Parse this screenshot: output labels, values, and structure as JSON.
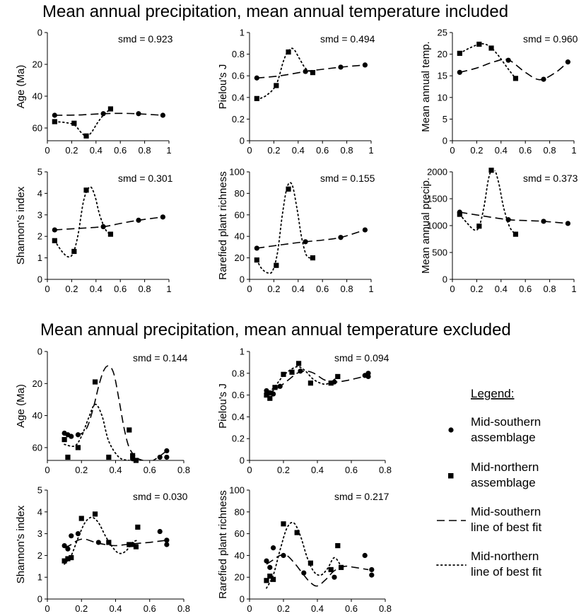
{
  "titles": {
    "top": "Mean annual precipitation, mean annual temperature included",
    "bottom": "Mean annual precipitation, mean annual temperature excluded"
  },
  "legend": {
    "title": "Legend:",
    "items": [
      {
        "symbol": "circle",
        "lines": [
          "Mid-southern",
          "assemblage"
        ]
      },
      {
        "symbol": "square",
        "lines": [
          "Mid-northern",
          "assemblage"
        ]
      },
      {
        "symbol": "dashed",
        "lines": [
          "Mid-southern",
          "line of best fit"
        ]
      },
      {
        "symbol": "dotted",
        "lines": [
          "Mid-northern",
          "line of best fit"
        ]
      }
    ]
  },
  "chart_data": [
    {
      "id": "a1",
      "type": "scatter",
      "ylabel": "Age (Ma)",
      "smd": "smd = 0.923",
      "xlim": [
        0,
        1
      ],
      "xticks": [
        "0",
        "0.2",
        "0.4",
        "0.6",
        "0.8",
        "1"
      ],
      "xtick_values": [
        0,
        0.2,
        0.4,
        0.6,
        0.8,
        1
      ],
      "ylim": [
        0,
        68
      ],
      "yticks": [
        0,
        20,
        40,
        60
      ],
      "yreverse": true,
      "south": {
        "x": [
          0.06,
          0.46,
          0.75,
          0.95
        ],
        "y": [
          52,
          51,
          51,
          52
        ]
      },
      "north": {
        "x": [
          0.06,
          0.22,
          0.32,
          0.52
        ],
        "y": [
          56,
          57,
          65,
          48
        ]
      },
      "south_fit": {
        "x": [
          0.06,
          0.25,
          0.46,
          0.6,
          0.75,
          0.95
        ],
        "y": [
          52,
          51.8,
          51,
          50.8,
          51.1,
          52
        ]
      },
      "north_fit": {
        "x": [
          0.06,
          0.14,
          0.22,
          0.28,
          0.32,
          0.36,
          0.41,
          0.46,
          0.52
        ],
        "y": [
          56,
          56.5,
          58,
          63,
          65,
          63,
          57,
          52,
          48
        ]
      }
    },
    {
      "id": "a2",
      "type": "scatter",
      "ylabel": "Pielou's J",
      "smd": "smd = 0.494",
      "xlim": [
        0,
        1
      ],
      "xticks": [
        "0",
        "0.2",
        "0.4",
        "0.6",
        "0.8",
        "1"
      ],
      "xtick_values": [
        0,
        0.2,
        0.4,
        0.6,
        0.8,
        1
      ],
      "ylim": [
        0,
        1
      ],
      "yticks": [
        0,
        0.2,
        0.4,
        0.6,
        0.8,
        1
      ],
      "ytick_labels": [
        "0",
        "0.2",
        "0.4",
        "0.6",
        "0.8",
        "1"
      ],
      "south": {
        "x": [
          0.06,
          0.46,
          0.75,
          0.95
        ],
        "y": [
          0.58,
          0.64,
          0.68,
          0.7
        ]
      },
      "north": {
        "x": [
          0.06,
          0.22,
          0.32,
          0.52
        ],
        "y": [
          0.39,
          0.51,
          0.82,
          0.63
        ]
      },
      "south_fit": {
        "x": [
          0.06,
          0.25,
          0.46,
          0.6,
          0.75,
          0.95
        ],
        "y": [
          0.58,
          0.6,
          0.64,
          0.66,
          0.68,
          0.7
        ]
      },
      "north_fit": {
        "x": [
          0.06,
          0.14,
          0.22,
          0.28,
          0.32,
          0.36,
          0.41,
          0.46,
          0.52
        ],
        "y": [
          0.38,
          0.42,
          0.52,
          0.74,
          0.83,
          0.85,
          0.76,
          0.67,
          0.63
        ]
      }
    },
    {
      "id": "a3",
      "type": "scatter",
      "ylabel": "Mean annual temp.",
      "smd": "smd = 0.960",
      "xlim": [
        0,
        1
      ],
      "xticks": [
        "0",
        "0.2",
        "0.4",
        "0.6",
        "0.8",
        "1"
      ],
      "xtick_values": [
        0,
        0.2,
        0.4,
        0.6,
        0.8,
        1
      ],
      "ylim": [
        0,
        25
      ],
      "yticks": [
        0,
        5,
        10,
        15,
        20,
        25
      ],
      "south": {
        "x": [
          0.06,
          0.46,
          0.75,
          0.95
        ],
        "y": [
          15.8,
          18.6,
          14.2,
          18.2
        ]
      },
      "north": {
        "x": [
          0.06,
          0.22,
          0.32,
          0.52
        ],
        "y": [
          20.2,
          22.3,
          21.4,
          14.4
        ]
      },
      "south_fit": {
        "x": [
          0.06,
          0.2,
          0.35,
          0.46,
          0.6,
          0.72,
          0.85,
          0.95
        ],
        "y": [
          15.8,
          16.8,
          18.3,
          18.7,
          15.8,
          14.1,
          15.8,
          18.2
        ]
      },
      "north_fit": {
        "x": [
          0.06,
          0.14,
          0.22,
          0.27,
          0.32,
          0.38,
          0.44,
          0.48,
          0.52
        ],
        "y": [
          20.2,
          21.4,
          22.3,
          22.3,
          21.5,
          19.6,
          17.3,
          15.8,
          14.4
        ]
      }
    },
    {
      "id": "a4",
      "type": "scatter",
      "ylabel": "Shannon's index",
      "smd": "smd = 0.301",
      "xlim": [
        0,
        1
      ],
      "xticks": [
        "0",
        "0.2",
        "0.4",
        "0.6",
        "0.8",
        "1"
      ],
      "xtick_values": [
        0,
        0.2,
        0.4,
        0.6,
        0.8,
        1
      ],
      "ylim": [
        0,
        5
      ],
      "yticks": [
        0,
        1,
        2,
        3,
        4,
        5
      ],
      "south": {
        "x": [
          0.06,
          0.46,
          0.75,
          0.95
        ],
        "y": [
          2.3,
          2.45,
          2.75,
          2.9
        ]
      },
      "north": {
        "x": [
          0.06,
          0.22,
          0.32,
          0.52
        ],
        "y": [
          1.8,
          1.3,
          4.15,
          2.1
        ]
      },
      "south_fit": {
        "x": [
          0.06,
          0.25,
          0.46,
          0.6,
          0.75,
          0.95
        ],
        "y": [
          2.3,
          2.37,
          2.45,
          2.6,
          2.75,
          2.9
        ]
      },
      "north_fit": {
        "x": [
          0.06,
          0.12,
          0.17,
          0.21,
          0.25,
          0.3,
          0.35,
          0.39,
          0.43,
          0.48,
          0.52
        ],
        "y": [
          1.8,
          1.3,
          1.05,
          1.2,
          2.0,
          3.7,
          4.3,
          3.9,
          3.0,
          2.3,
          2.1
        ]
      }
    },
    {
      "id": "a5",
      "type": "scatter",
      "ylabel": "Rarefied plant richness",
      "smd": "smd = 0.155",
      "xlim": [
        0,
        1
      ],
      "xticks": [
        "0",
        "0.2",
        "0.4",
        "0.6",
        "0.8",
        "1"
      ],
      "xtick_values": [
        0,
        0.2,
        0.4,
        0.6,
        0.8,
        1
      ],
      "ylim": [
        0,
        100
      ],
      "yticks": [
        0,
        20,
        40,
        60,
        80,
        100
      ],
      "south": {
        "x": [
          0.06,
          0.46,
          0.75,
          0.95
        ],
        "y": [
          29,
          35,
          39,
          46
        ]
      },
      "north": {
        "x": [
          0.06,
          0.22,
          0.32,
          0.52
        ],
        "y": [
          18,
          13,
          84,
          20
        ]
      },
      "south_fit": {
        "x": [
          0.06,
          0.25,
          0.46,
          0.6,
          0.75,
          0.95
        ],
        "y": [
          29,
          32,
          35,
          36.5,
          39,
          46
        ]
      },
      "north_fit": {
        "x": [
          0.06,
          0.1,
          0.15,
          0.19,
          0.23,
          0.27,
          0.31,
          0.35,
          0.39,
          0.43,
          0.47,
          0.52
        ],
        "y": [
          18,
          10,
          6,
          8,
          25,
          60,
          86,
          88,
          66,
          38,
          22,
          20
        ]
      }
    },
    {
      "id": "a6",
      "type": "scatter",
      "ylabel": "Mean annual precip.",
      "smd": "smd = 0.373",
      "xlim": [
        0,
        1
      ],
      "xticks": [
        "0",
        "0.2",
        "0.4",
        "0.6",
        "0.8",
        "1"
      ],
      "xtick_values": [
        0,
        0.2,
        0.4,
        0.6,
        0.8,
        1
      ],
      "ylim": [
        0,
        2000
      ],
      "yticks": [
        0,
        500,
        1000,
        1500,
        2000
      ],
      "south": {
        "x": [
          0.06,
          0.46,
          0.75,
          0.95
        ],
        "y": [
          1250,
          1110,
          1080,
          1040
        ]
      },
      "north": {
        "x": [
          0.06,
          0.22,
          0.32,
          0.52
        ],
        "y": [
          1210,
          990,
          2030,
          840
        ]
      },
      "south_fit": {
        "x": [
          0.06,
          0.25,
          0.46,
          0.6,
          0.75,
          0.95
        ],
        "y": [
          1250,
          1180,
          1110,
          1095,
          1080,
          1040
        ]
      },
      "north_fit": {
        "x": [
          0.06,
          0.12,
          0.18,
          0.22,
          0.26,
          0.3,
          0.34,
          0.38,
          0.42,
          0.47,
          0.52
        ],
        "y": [
          1210,
          1050,
          920,
          980,
          1350,
          1900,
          2060,
          1800,
          1350,
          980,
          840
        ]
      }
    },
    {
      "id": "b1",
      "type": "scatter",
      "ylabel": "Age (Ma)",
      "smd": "smd = 0.144",
      "xlim": [
        0,
        0.8
      ],
      "xticks": [
        "0",
        "0.2",
        "0.4",
        "0.6",
        "0.8"
      ],
      "xtick_values": [
        0,
        0.2,
        0.4,
        0.6,
        0.8
      ],
      "ylim": [
        0,
        68
      ],
      "yticks": [
        0,
        20,
        40,
        60
      ],
      "yreverse": true,
      "south": {
        "x": [
          0.1,
          0.12,
          0.14,
          0.18,
          0.5,
          0.66,
          0.7,
          0.7
        ],
        "y": [
          51,
          52,
          53,
          52,
          67,
          66,
          62,
          66
        ]
      },
      "north": {
        "x": [
          0.1,
          0.12,
          0.18,
          0.28,
          0.36,
          0.48,
          0.5,
          0.52
        ],
        "y": [
          55,
          66,
          60,
          19,
          66,
          49,
          65,
          68
        ]
      },
      "south_fit": {
        "x": [
          0.1,
          0.18,
          0.23,
          0.27,
          0.3,
          0.33,
          0.36,
          0.39,
          0.42,
          0.45,
          0.48,
          0.52,
          0.56,
          0.6,
          0.65,
          0.7
        ],
        "y": [
          52,
          52,
          48,
          35,
          22,
          12,
          9,
          14,
          30,
          48,
          60,
          66,
          68,
          69,
          66,
          62
        ]
      },
      "north_fit": {
        "x": [
          0.1,
          0.16,
          0.2,
          0.24,
          0.28,
          0.32,
          0.36,
          0.42,
          0.48,
          0.52
        ],
        "y": [
          58,
          59,
          53,
          42,
          33,
          40,
          56,
          66,
          68,
          68
        ]
      }
    },
    {
      "id": "b2",
      "type": "scatter",
      "ylabel": "Pielou's J",
      "smd": "smd = 0.094",
      "xlim": [
        0,
        0.8
      ],
      "xticks": [
        "0",
        "0.2",
        "0.4",
        "0.6",
        "0.8"
      ],
      "xtick_values": [
        0,
        0.2,
        0.4,
        0.6,
        0.8
      ],
      "ylim": [
        0,
        1
      ],
      "yticks": [
        0,
        0.2,
        0.4,
        0.6,
        0.8,
        1
      ],
      "ytick_labels": [
        "0",
        "0.2",
        "0.4",
        "0.6",
        "0.8",
        "1"
      ],
      "south": {
        "x": [
          0.1,
          0.12,
          0.14,
          0.18,
          0.3,
          0.5,
          0.68,
          0.7,
          0.7
        ],
        "y": [
          0.64,
          0.62,
          0.61,
          0.68,
          0.82,
          0.72,
          0.78,
          0.8,
          0.77
        ]
      },
      "north": {
        "x": [
          0.1,
          0.12,
          0.15,
          0.2,
          0.25,
          0.29,
          0.36,
          0.48,
          0.52
        ],
        "y": [
          0.6,
          0.57,
          0.67,
          0.79,
          0.81,
          0.89,
          0.71,
          0.71,
          0.77
        ]
      },
      "south_fit": {
        "x": [
          0.1,
          0.14,
          0.18,
          0.23,
          0.28,
          0.33,
          0.38,
          0.44,
          0.5,
          0.56,
          0.62,
          0.7
        ],
        "y": [
          0.62,
          0.64,
          0.68,
          0.74,
          0.8,
          0.82,
          0.8,
          0.74,
          0.72,
          0.73,
          0.75,
          0.78
        ]
      },
      "north_fit": {
        "x": [
          0.1,
          0.15,
          0.2,
          0.25,
          0.29,
          0.33,
          0.38,
          0.44,
          0.48,
          0.52
        ],
        "y": [
          0.6,
          0.68,
          0.78,
          0.84,
          0.86,
          0.82,
          0.74,
          0.7,
          0.72,
          0.77
        ]
      }
    },
    {
      "id": "b3",
      "type": "scatter",
      "ylabel": "Shannon's index",
      "smd": "smd = 0.030",
      "xlim": [
        0,
        0.8
      ],
      "xticks": [
        "0",
        "0.2",
        "0.4",
        "0.6",
        "0.8"
      ],
      "xtick_values": [
        0,
        0.2,
        0.4,
        0.6,
        0.8
      ],
      "ylim": [
        0,
        5
      ],
      "yticks": [
        0,
        1,
        2,
        3,
        4,
        5
      ],
      "south": {
        "x": [
          0.1,
          0.12,
          0.14,
          0.18,
          0.3,
          0.5,
          0.66,
          0.7,
          0.7
        ],
        "y": [
          2.45,
          2.3,
          2.9,
          3.0,
          2.6,
          2.5,
          3.1,
          2.7,
          2.5
        ]
      },
      "north": {
        "x": [
          0.1,
          0.12,
          0.14,
          0.2,
          0.28,
          0.36,
          0.48,
          0.52,
          0.53
        ],
        "y": [
          1.75,
          1.85,
          1.9,
          3.7,
          3.9,
          2.6,
          2.5,
          2.4,
          3.3
        ]
      },
      "south_fit": {
        "x": [
          0.1,
          0.14,
          0.18,
          0.22,
          0.28,
          0.34,
          0.4,
          0.46,
          0.52,
          0.6,
          0.7
        ],
        "y": [
          2.35,
          2.5,
          2.7,
          2.75,
          2.6,
          2.5,
          2.45,
          2.5,
          2.55,
          2.6,
          2.7
        ]
      },
      "north_fit": {
        "x": [
          0.1,
          0.14,
          0.18,
          0.22,
          0.26,
          0.3,
          0.34,
          0.38,
          0.42,
          0.46,
          0.5,
          0.53
        ],
        "y": [
          1.6,
          2.0,
          2.8,
          3.5,
          3.75,
          3.5,
          2.9,
          2.4,
          2.1,
          2.2,
          2.6,
          2.7
        ]
      }
    },
    {
      "id": "b4",
      "type": "scatter",
      "ylabel": "Rarefied plant richness",
      "smd": "smd = 0.217",
      "xlim": [
        0,
        0.8
      ],
      "xticks": [
        "0",
        "0.2",
        "0.4",
        "0.6",
        "0.8"
      ],
      "xtick_values": [
        0,
        0.2,
        0.4,
        0.6,
        0.8
      ],
      "ylim": [
        0,
        100
      ],
      "yticks": [
        0,
        20,
        40,
        60,
        80,
        100
      ],
      "south": {
        "x": [
          0.1,
          0.12,
          0.14,
          0.2,
          0.32,
          0.5,
          0.68,
          0.72,
          0.72
        ],
        "y": [
          35,
          29,
          47,
          40,
          24,
          20,
          40,
          27,
          22
        ]
      },
      "north": {
        "x": [
          0.1,
          0.12,
          0.14,
          0.2,
          0.28,
          0.36,
          0.48,
          0.52,
          0.54
        ],
        "y": [
          17,
          21,
          18,
          69,
          61,
          33,
          27,
          49,
          29
        ]
      },
      "south_fit": {
        "x": [
          0.1,
          0.14,
          0.18,
          0.22,
          0.27,
          0.32,
          0.36,
          0.4,
          0.45,
          0.5,
          0.56,
          0.62,
          0.7
        ],
        "y": [
          32,
          36,
          40,
          40,
          32,
          22,
          15,
          12,
          18,
          26,
          30,
          29,
          27
        ]
      },
      "north_fit": {
        "x": [
          0.1,
          0.14,
          0.18,
          0.22,
          0.26,
          0.3,
          0.34,
          0.38,
          0.42,
          0.46,
          0.5,
          0.54
        ],
        "y": [
          10,
          22,
          45,
          65,
          70,
          58,
          38,
          25,
          22,
          28,
          38,
          30
        ]
      }
    }
  ]
}
